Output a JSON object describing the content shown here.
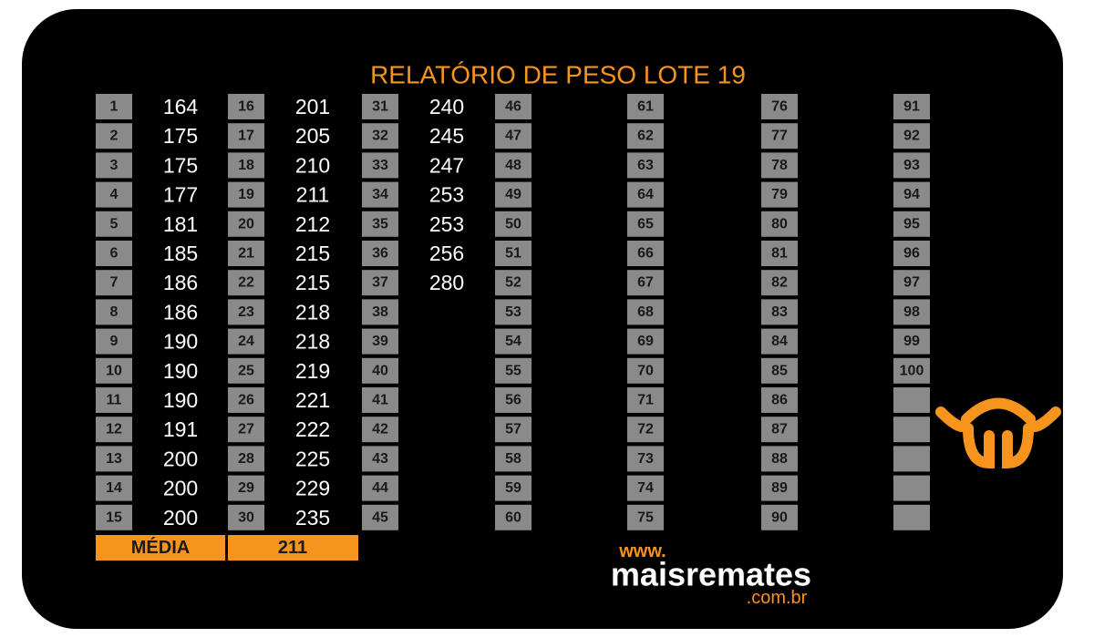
{
  "title": "RELATÓRIO DE PESO LOTE 19",
  "table": {
    "columns": [
      [
        {
          "number": 1,
          "weight": 164
        },
        {
          "number": 2,
          "weight": 175
        },
        {
          "number": 3,
          "weight": 175
        },
        {
          "number": 4,
          "weight": 177
        },
        {
          "number": 5,
          "weight": 181
        },
        {
          "number": 6,
          "weight": 185
        },
        {
          "number": 7,
          "weight": 186
        },
        {
          "number": 8,
          "weight": 186
        },
        {
          "number": 9,
          "weight": 190
        },
        {
          "number": 10,
          "weight": 190
        },
        {
          "number": 11,
          "weight": 190
        },
        {
          "number": 12,
          "weight": 191
        },
        {
          "number": 13,
          "weight": 200
        },
        {
          "number": 14,
          "weight": 200
        },
        {
          "number": 15,
          "weight": 200
        }
      ],
      [
        {
          "number": 16,
          "weight": 201
        },
        {
          "number": 17,
          "weight": 205
        },
        {
          "number": 18,
          "weight": 210
        },
        {
          "number": 19,
          "weight": 211
        },
        {
          "number": 20,
          "weight": 212
        },
        {
          "number": 21,
          "weight": 215
        },
        {
          "number": 22,
          "weight": 215
        },
        {
          "number": 23,
          "weight": 218
        },
        {
          "number": 24,
          "weight": 218
        },
        {
          "number": 25,
          "weight": 219
        },
        {
          "number": 26,
          "weight": 221
        },
        {
          "number": 27,
          "weight": 222
        },
        {
          "number": 28,
          "weight": 225
        },
        {
          "number": 29,
          "weight": 229
        },
        {
          "number": 30,
          "weight": 235
        }
      ],
      [
        {
          "number": 31,
          "weight": 240
        },
        {
          "number": 32,
          "weight": 245
        },
        {
          "number": 33,
          "weight": 247
        },
        {
          "number": 34,
          "weight": 253
        },
        {
          "number": 35,
          "weight": 253
        },
        {
          "number": 36,
          "weight": 256
        },
        {
          "number": 37,
          "weight": 280
        },
        {
          "number": 38
        },
        {
          "number": 39
        },
        {
          "number": 40
        },
        {
          "number": 41
        },
        {
          "number": 42
        },
        {
          "number": 43
        },
        {
          "number": 44
        },
        {
          "number": 45
        }
      ],
      [
        {
          "number": 46
        },
        {
          "number": 47
        },
        {
          "number": 48
        },
        {
          "number": 49
        },
        {
          "number": 50
        },
        {
          "number": 51
        },
        {
          "number": 52
        },
        {
          "number": 53
        },
        {
          "number": 54
        },
        {
          "number": 55
        },
        {
          "number": 56
        },
        {
          "number": 57
        },
        {
          "number": 58
        },
        {
          "number": 59
        },
        {
          "number": 60
        }
      ],
      [
        {
          "number": 61
        },
        {
          "number": 62
        },
        {
          "number": 63
        },
        {
          "number": 64
        },
        {
          "number": 65
        },
        {
          "number": 66
        },
        {
          "number": 67
        },
        {
          "number": 68
        },
        {
          "number": 69
        },
        {
          "number": 70
        },
        {
          "number": 71
        },
        {
          "number": 72
        },
        {
          "number": 73
        },
        {
          "number": 74
        },
        {
          "number": 75
        }
      ],
      [
        {
          "number": 76
        },
        {
          "number": 77
        },
        {
          "number": 78
        },
        {
          "number": 79
        },
        {
          "number": 80
        },
        {
          "number": 81
        },
        {
          "number": 82
        },
        {
          "number": 83
        },
        {
          "number": 84
        },
        {
          "number": 85
        },
        {
          "number": 86
        },
        {
          "number": 87
        },
        {
          "number": 88
        },
        {
          "number": 89
        },
        {
          "number": 90
        }
      ],
      [
        {
          "number": 91
        },
        {
          "number": 92
        },
        {
          "number": 93
        },
        {
          "number": 94
        },
        {
          "number": 95
        },
        {
          "number": 96
        },
        {
          "number": 97
        },
        {
          "number": 98
        },
        {
          "number": 99
        },
        {
          "number": 100
        }
      ]
    ]
  },
  "average": {
    "label": "MÉDIA",
    "value": 211
  },
  "logo": {
    "prefix": "www.",
    "name": "maisremates",
    "suffix": ".com.br"
  }
}
